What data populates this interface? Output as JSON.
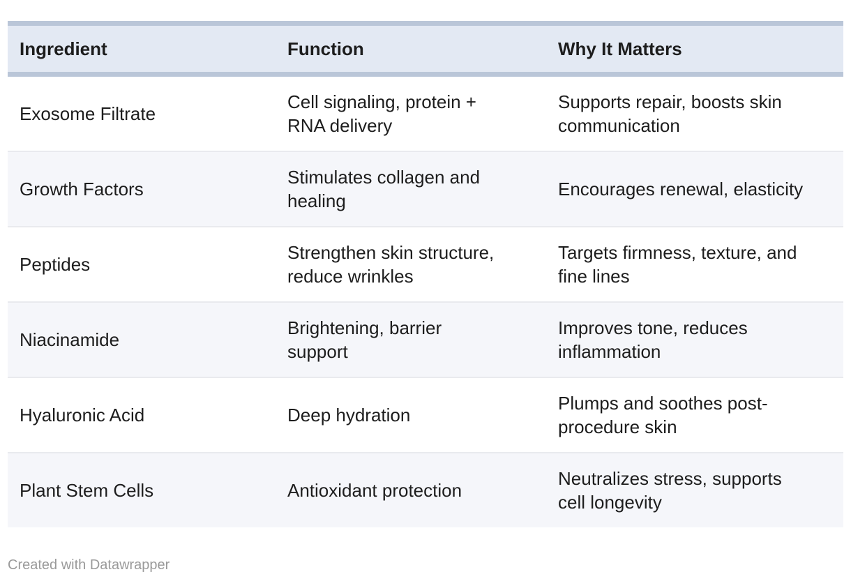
{
  "chart_data": {
    "type": "table",
    "columns": [
      "Ingredient",
      "Function",
      "Why It Matters"
    ],
    "rows": [
      [
        "Exosome Filtrate",
        "Cell signaling, protein + RNA delivery",
        "Supports repair, boosts skin communication"
      ],
      [
        "Growth Factors",
        "Stimulates collagen and healing",
        "Encourages renewal, elasticity"
      ],
      [
        "Peptides",
        "Strengthen skin structure, reduce wrinkles",
        "Targets firmness, texture, and fine lines"
      ],
      [
        "Niacinamide",
        "Brightening, barrier support",
        "Improves tone, reduces inflammation"
      ],
      [
        "Hyaluronic Acid",
        "Deep hydration",
        "Plumps and soothes post-procedure skin"
      ],
      [
        "Plant Stem Cells",
        "Antioxidant protection",
        "Neutralizes stress, supports cell longevity"
      ]
    ],
    "layout_hints": {
      "striped_rows": "even rows shaded",
      "header_rule": "thick top and bottom rule on header"
    }
  },
  "footer": {
    "credit": "Created with Datawrapper"
  },
  "colors": {
    "header_bg": "#e3e9f3",
    "header_border": "#bac6d8",
    "stripe_bg": "#f5f6fa",
    "row_divider": "#e9eaee",
    "text": "#1d1d1d",
    "credit_text": "#9a9a9a",
    "background": "#ffffff"
  }
}
